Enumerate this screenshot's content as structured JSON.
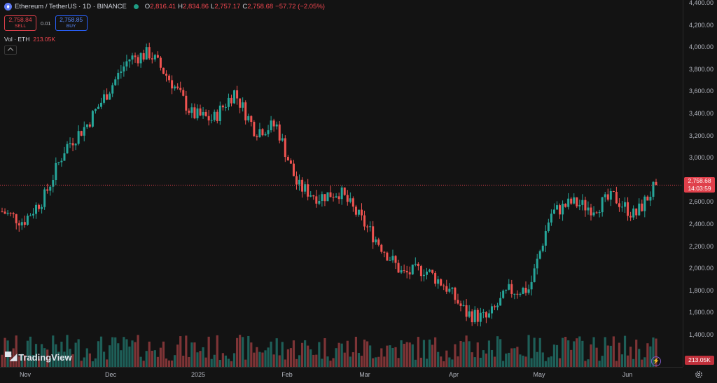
{
  "header": {
    "symbol": "Ethereum / TetherUS · 1D · BINANCE",
    "o_label": "O",
    "o_value": "2,816.41",
    "h_label": "H",
    "h_value": "2,834.86",
    "l_label": "L",
    "l_value": "2,757.17",
    "c_label": "C",
    "c_value": "2,758.68",
    "change": "−57.72 (−2.05%)"
  },
  "trade": {
    "sell_price": "2,758.84",
    "sell_label": "SELL",
    "spread": "0.01",
    "buy_price": "2,758.85",
    "buy_label": "BUY"
  },
  "volume_indicator": {
    "label": "Vol · ETH",
    "value": "213.05K"
  },
  "price_axis": {
    "ticks": [
      "4,400.00",
      "4,200.00",
      "4,000.00",
      "3,800.00",
      "3,600.00",
      "3,400.00",
      "3,200.00",
      "3,000.00",
      "2,800.00",
      "2,600.00",
      "2,400.00",
      "2,200.00",
      "2,000.00",
      "1,800.00",
      "1,600.00",
      "1,400.00"
    ],
    "current_price": "2,758.68",
    "countdown": "14:03:59",
    "volume_badge": "213.05K"
  },
  "time_axis": {
    "ticks": [
      "Nov",
      "Dec",
      "2025",
      "Feb",
      "Mar",
      "Apr",
      "May",
      "Jun"
    ]
  },
  "logo": {
    "text": "TradingView"
  },
  "icons": {
    "settings": "gear-icon",
    "lightning": "bolt-icon",
    "collapse": "chevron-up-icon"
  },
  "colors": {
    "up": "#26a69a",
    "down": "#ef5350",
    "background": "#131313",
    "price_line": "#e0404b"
  },
  "chart_data": {
    "type": "candlestick",
    "y_min": 1400,
    "y_max": 4400,
    "last_price": 2758.68,
    "monthly_path": [
      [
        "Nov",
        2520
      ],
      [
        "Nov",
        2430
      ],
      [
        "Nov",
        2650
      ],
      [
        "Nov",
        3100
      ],
      [
        "Nov",
        3300
      ],
      [
        "Dec",
        3600
      ],
      [
        "Dec",
        3900
      ],
      [
        "Dec",
        3950
      ],
      [
        "Dec",
        3700
      ],
      [
        "Dec",
        3400
      ],
      [
        "2025",
        3350
      ],
      [
        "2025",
        3600
      ],
      [
        "2025",
        3250
      ],
      [
        "2025",
        3300
      ],
      [
        "Feb",
        2750
      ],
      [
        "Feb",
        2650
      ],
      [
        "Feb",
        2700
      ],
      [
        "Feb",
        2450
      ],
      [
        "Mar",
        2200
      ],
      [
        "Mar",
        1950
      ],
      [
        "Mar",
        2000
      ],
      [
        "Mar",
        1850
      ],
      [
        "Apr",
        1600
      ],
      [
        "Apr",
        1550
      ],
      [
        "Apr",
        1800
      ],
      [
        "Apr",
        1820
      ],
      [
        "May",
        2500
      ],
      [
        "May",
        2600
      ],
      [
        "May",
        2550
      ],
      [
        "May",
        2650
      ],
      [
        "Jun",
        2480
      ],
      [
        "Jun",
        2760
      ]
    ]
  }
}
